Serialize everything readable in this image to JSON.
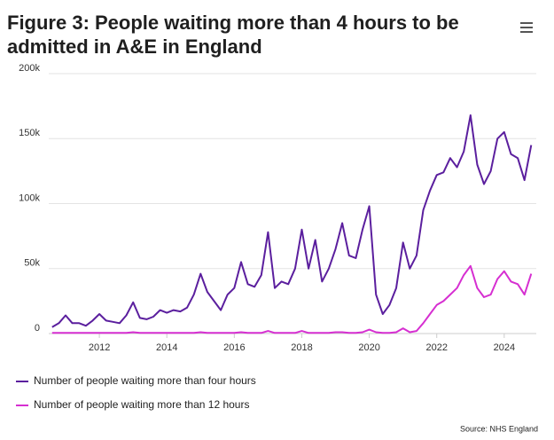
{
  "chart_data": {
    "type": "line",
    "title": "Figure 3: People waiting more than 4 hours to be admitted in A&E in England",
    "source": "Source: NHS England",
    "x": [
      2010.6,
      2010.8,
      2011.0,
      2011.2,
      2011.4,
      2011.6,
      2011.8,
      2012.0,
      2012.2,
      2012.4,
      2012.6,
      2012.8,
      2013.0,
      2013.2,
      2013.4,
      2013.6,
      2013.8,
      2014.0,
      2014.2,
      2014.4,
      2014.6,
      2014.8,
      2015.0,
      2015.2,
      2015.4,
      2015.6,
      2015.8,
      2016.0,
      2016.2,
      2016.4,
      2016.6,
      2016.8,
      2017.0,
      2017.2,
      2017.4,
      2017.6,
      2017.8,
      2018.0,
      2018.2,
      2018.4,
      2018.6,
      2018.8,
      2019.0,
      2019.2,
      2019.4,
      2019.6,
      2019.8,
      2020.0,
      2020.2,
      2020.4,
      2020.6,
      2020.8,
      2021.0,
      2021.2,
      2021.4,
      2021.6,
      2021.8,
      2022.0,
      2022.2,
      2022.4,
      2022.6,
      2022.8,
      2023.0,
      2023.2,
      2023.4,
      2023.6,
      2023.8,
      2024.0,
      2024.2,
      2024.4,
      2024.6,
      2024.8
    ],
    "series": [
      {
        "name": "Number of people waiting more than four hours",
        "color": "#5b1f9e",
        "values": [
          5000,
          8000,
          14000,
          8000,
          8000,
          6000,
          10000,
          15000,
          10000,
          9000,
          8000,
          14000,
          24000,
          12000,
          11000,
          13000,
          18000,
          16000,
          18000,
          17000,
          20000,
          30000,
          46000,
          32000,
          25000,
          18000,
          30000,
          35000,
          55000,
          38000,
          36000,
          45000,
          78000,
          35000,
          40000,
          38000,
          50000,
          80000,
          50000,
          72000,
          40000,
          50000,
          65000,
          85000,
          60000,
          58000,
          80000,
          98000,
          30000,
          15000,
          22000,
          35000,
          70000,
          50000,
          60000,
          95000,
          110000,
          122000,
          124000,
          135000,
          128000,
          140000,
          168000,
          130000,
          115000,
          125000,
          150000,
          155000,
          138000,
          135000,
          118000,
          145000
        ]
      },
      {
        "name": "Number of people waiting more than 12 hours",
        "color": "#d62fd1",
        "values": [
          500,
          500,
          500,
          500,
          500,
          500,
          500,
          500,
          500,
          500,
          500,
          500,
          1000,
          500,
          500,
          500,
          500,
          500,
          500,
          500,
          500,
          500,
          1000,
          500,
          500,
          500,
          500,
          500,
          1000,
          500,
          500,
          500,
          2000,
          500,
          500,
          500,
          500,
          2000,
          500,
          500,
          500,
          500,
          1000,
          1000,
          500,
          500,
          1000,
          3000,
          1000,
          500,
          500,
          1000,
          4000,
          1000,
          2000,
          8000,
          15000,
          22000,
          25000,
          30000,
          35000,
          45000,
          52000,
          35000,
          28000,
          30000,
          42000,
          48000,
          40000,
          38000,
          30000,
          46000
        ]
      }
    ],
    "xlim": [
      2010.5,
      2024.95
    ],
    "xticks": [
      2012,
      2014,
      2016,
      2018,
      2020,
      2022,
      2024
    ],
    "ylim": [
      0,
      200000
    ],
    "yticks": [
      {
        "value": 0,
        "label": "0"
      },
      {
        "value": 50000,
        "label": "50k"
      },
      {
        "value": 100000,
        "label": "100k"
      },
      {
        "value": 150000,
        "label": "150k"
      },
      {
        "value": 200000,
        "label": "200k"
      }
    ],
    "grid": true
  }
}
